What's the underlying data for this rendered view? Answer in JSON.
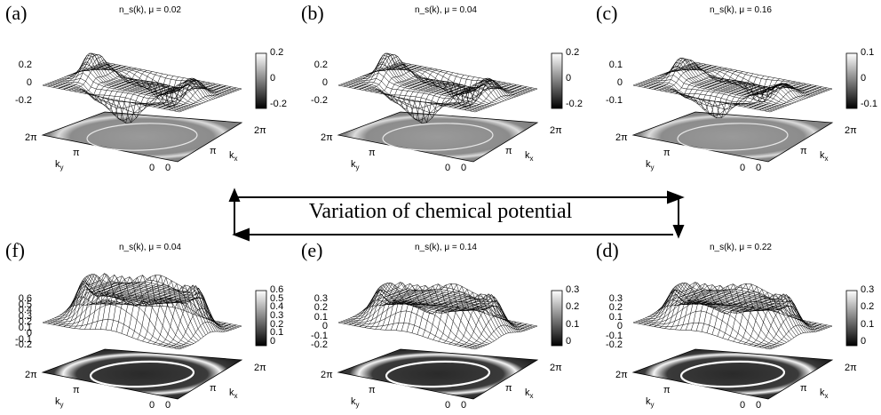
{
  "arrow_label": "Variation of chemical potential",
  "panels": [
    {
      "id": "a",
      "letter": "(a)",
      "title": "n_s(k), μ = 0.02",
      "z_ticks": [
        "0.2",
        "0",
        "-0.2"
      ],
      "cb_ticks": [
        "0.2",
        "0",
        "-0.2"
      ],
      "style": "signed"
    },
    {
      "id": "b",
      "letter": "(b)",
      "title": "n_s(k), μ = 0.04",
      "z_ticks": [
        "0.2",
        "0",
        "-0.2"
      ],
      "cb_ticks": [
        "0.2",
        "0",
        "-0.2"
      ],
      "style": "signed"
    },
    {
      "id": "c",
      "letter": "(c)",
      "title": "n_s(k), μ = 0.16",
      "z_ticks": [
        "0.1",
        "0",
        "-0.1"
      ],
      "cb_ticks": [
        "0.1",
        "0",
        "-0.1"
      ],
      "style": "signed"
    },
    {
      "id": "f",
      "letter": "(f)",
      "title": "n_s(k), μ = 0.04",
      "z_ticks": [
        "0.6",
        "0.5",
        "0.4",
        "0.3",
        "0.2",
        "0.1",
        "0",
        "-0.1",
        "-0.2"
      ],
      "cb_ticks": [
        "0.6",
        "0.5",
        "0.4",
        "0.3",
        "0.2",
        "0.1",
        "0"
      ],
      "style": "ring"
    },
    {
      "id": "e",
      "letter": "(e)",
      "title": "n_s(k), μ = 0.14",
      "z_ticks": [
        "0.3",
        "0.2",
        "0.1",
        "0",
        "-0.1",
        "-0.2"
      ],
      "cb_ticks": [
        "0.3",
        "0.2",
        "0.1",
        "0"
      ],
      "style": "ring"
    },
    {
      "id": "d",
      "letter": "(d)",
      "title": "n_s(k), μ = 0.22",
      "z_ticks": [
        "0.3",
        "0.2",
        "0.1",
        "0",
        "-0.1",
        "-0.2"
      ],
      "cb_ticks": [
        "0.3",
        "0.2",
        "0.1",
        "0"
      ],
      "style": "ring"
    }
  ],
  "axis_labels": {
    "two_pi": "2π",
    "pi": "π",
    "zero": "0",
    "kx": "k",
    "kx_sub": "x",
    "ky": "k",
    "ky_sub": "y"
  }
}
